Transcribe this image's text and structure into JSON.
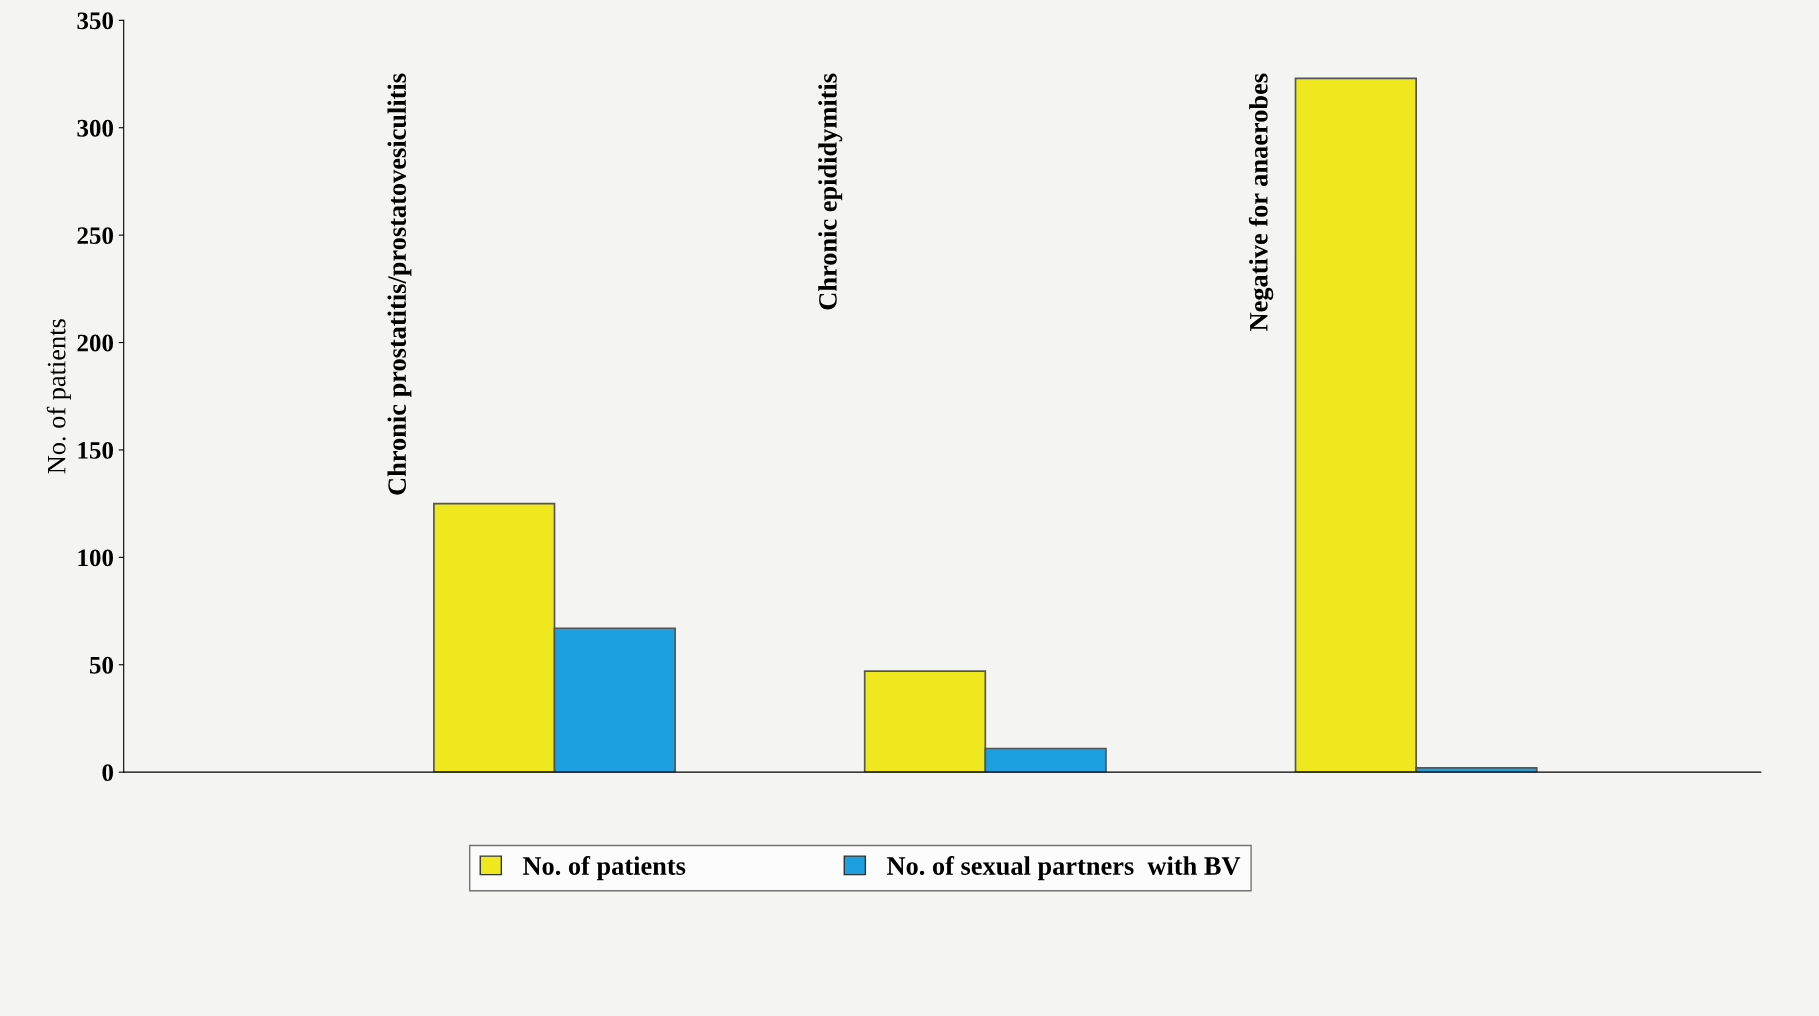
{
  "chart_data": {
    "type": "bar",
    "ylabel": "No. of patients",
    "categories": [
      "Chronic prostatitis/prostatovesiculitis",
      "Chronic epididymitis",
      "Negative for anaerobes"
    ],
    "series": [
      {
        "name": "No. of patients",
        "color": "#f0e81e",
        "values": [
          125,
          47,
          323
        ]
      },
      {
        "name": "No. of sexual partners  with BV",
        "color": "#1ca0e0",
        "values": [
          67,
          11,
          2
        ]
      }
    ],
    "ylim": [
      0,
      350
    ],
    "yticks": [
      0,
      50,
      100,
      150,
      200,
      250,
      300,
      350
    ],
    "grid": false,
    "legend": "bottom"
  }
}
